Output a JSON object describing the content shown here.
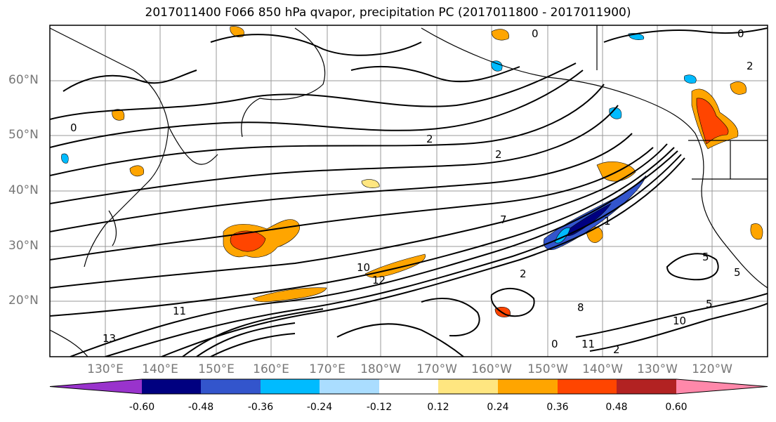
{
  "title": "2017011400 F066 850 hPa qvapor, precipitation PC (2017011800 - 2017011900)",
  "lat_labels": [
    "60°N",
    "50°N",
    "40°N",
    "30°N",
    "20°N"
  ],
  "lon_labels": [
    "130°E",
    "140°E",
    "150°E",
    "160°E",
    "170°E",
    "180°W",
    "170°W",
    "160°W",
    "150°W",
    "140°W",
    "130°W",
    "120°W"
  ],
  "contour_labels": [
    "0",
    "0",
    "0",
    "2",
    "2",
    "2",
    "5",
    "5",
    "5",
    "8",
    "10",
    "10",
    "11",
    "11",
    "12",
    "13",
    "2",
    "0",
    "1",
    "2",
    "7"
  ],
  "colorbar": {
    "labels": [
      "-0.60",
      "-0.48",
      "-0.36",
      "-0.24",
      "-0.12",
      "0.12",
      "0.24",
      "0.36",
      "0.48",
      "0.60"
    ],
    "colors": [
      "#9933cc",
      "#000080",
      "#3355cc",
      "#00bbff",
      "#aaddff",
      "#ffffff",
      "#ffe680",
      "#ffa500",
      "#ff4500",
      "#b22222",
      "#ff88aa"
    ]
  }
}
